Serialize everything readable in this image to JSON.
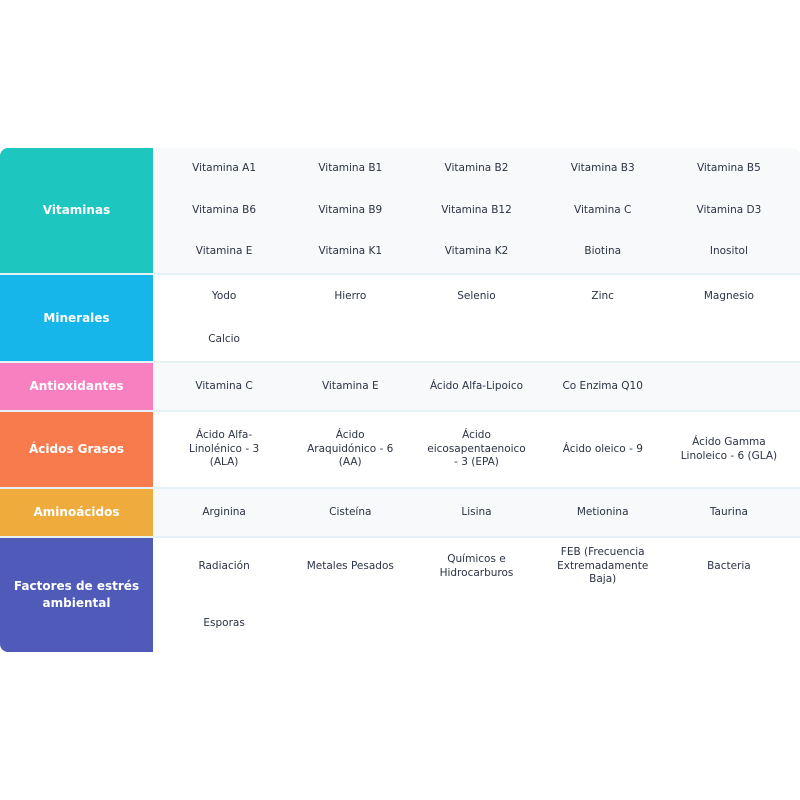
{
  "rows": [
    {
      "label": "Vitaminas",
      "items": [
        "Vitamina A1",
        "Vitamina B1",
        "Vitamina B2",
        "Vitamina B3",
        "Vitamina B5",
        "Vitamina B6",
        "Vitamina B9",
        "Vitamina B12",
        "Vitamina C",
        "Vitamina D3",
        "Vitamina E",
        "Vitamina K1",
        "Vitamina K2",
        "Biotina",
        "Inositol"
      ]
    },
    {
      "label": "Minerales",
      "items": [
        "Yodo",
        "Hierro",
        "Selenio",
        "Zinc",
        "Magnesio",
        "Calcio"
      ]
    },
    {
      "label": "Antioxidantes",
      "items": [
        "Vitamina C",
        "Vitamina E",
        "Ácido Alfa-Lipoico",
        "Co Enzima Q10"
      ]
    },
    {
      "label": "Ácidos Grasos",
      "items": [
        "Ácido Alfa-Linolénico - 3 (ALA)",
        "Ácido Araquidónico - 6 (AA)",
        "Ácido eicosapentaenoico - 3 (EPA)",
        "Ácido oleico - 9",
        "Ácido Gamma Linoleico - 6 (GLA)"
      ]
    },
    {
      "label": "Aminoácidos",
      "items": [
        "Arginina",
        "Cisteína",
        "Lisina",
        "Metionina",
        "Taurina"
      ]
    },
    {
      "label": "Factores de estrés ambiental",
      "items": [
        "Radiación",
        "Metales Pesados",
        "Químicos e Hidrocarburos",
        "FEB (Frecuencia Extremadamente Baja)",
        "Bacteria",
        "Esporas"
      ]
    }
  ]
}
